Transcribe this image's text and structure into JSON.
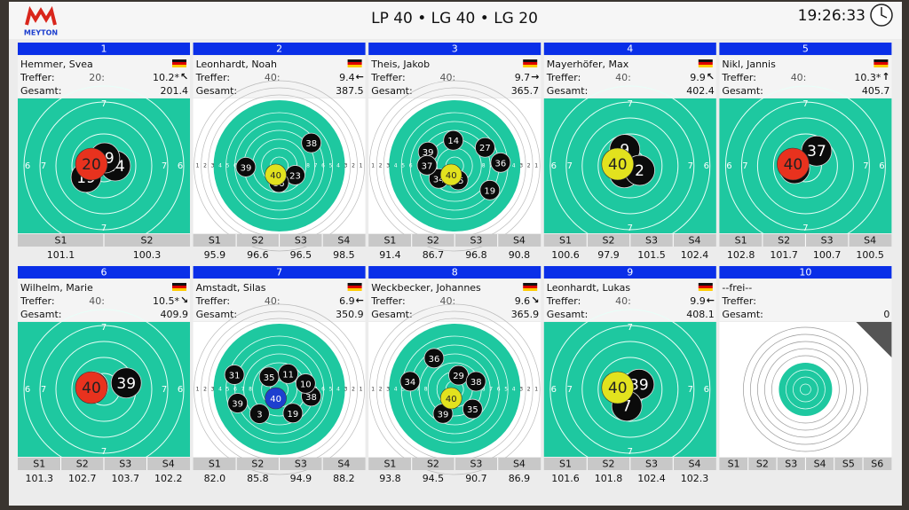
{
  "header": {
    "logo": "MEYTON",
    "title": "LP 40 • LG 40 • LG 20",
    "time": "19:26:33"
  },
  "labels": {
    "hits": "Treffer:",
    "total": "Gesamt:"
  },
  "ring_labels": [
    "1",
    "2",
    "3",
    "4",
    "5",
    "6",
    "7",
    "8"
  ],
  "lanes": [
    {
      "number": "1",
      "name": "Hemmer, Svea",
      "hits": "20:",
      "last_value": "10.2*",
      "direction": "↖",
      "total": "201.4",
      "series": [
        {
          "label": "S1",
          "value": "101.1"
        },
        {
          "label": "S2",
          "value": "100.3"
        }
      ],
      "shots": [
        "14",
        "19",
        "19"
      ],
      "last_shot": {
        "label": "20",
        "color": "#e8321e"
      }
    },
    {
      "number": "2",
      "name": "Leonhardt, Noah",
      "hits": "40:",
      "last_value": "9.4",
      "direction": "←",
      "total": "387.5",
      "series": [
        {
          "label": "S1",
          "value": "95.9"
        },
        {
          "label": "S2",
          "value": "96.6"
        },
        {
          "label": "S3",
          "value": "96.5"
        },
        {
          "label": "S4",
          "value": "98.5"
        }
      ],
      "shots": [
        "23",
        "39",
        "38",
        "36"
      ],
      "last_shot": {
        "label": "40",
        "color": "#e2e21e"
      }
    },
    {
      "number": "3",
      "name": "Theis, Jakob",
      "hits": "40:",
      "last_value": "9.7",
      "direction": "→",
      "total": "365.7",
      "series": [
        {
          "label": "S1",
          "value": "91.4"
        },
        {
          "label": "S2",
          "value": "86.7"
        },
        {
          "label": "S3",
          "value": "96.8"
        },
        {
          "label": "S4",
          "value": "90.8"
        }
      ],
      "shots": [
        "35",
        "39",
        "36",
        "34",
        "14",
        "19",
        "37",
        "27"
      ],
      "last_shot": {
        "label": "40",
        "color": "#e2e21e"
      }
    },
    {
      "number": "4",
      "name": "Mayerhöfer, Max",
      "hits": "40:",
      "last_value": "9.9",
      "direction": "↖",
      "total": "402.4",
      "series": [
        {
          "label": "S1",
          "value": "100.6"
        },
        {
          "label": "S2",
          "value": "97.9"
        },
        {
          "label": "S3",
          "value": "101.5"
        },
        {
          "label": "S4",
          "value": "102.4"
        }
      ],
      "shots": [
        "28",
        "9",
        "2"
      ],
      "last_shot": {
        "label": "40",
        "color": "#e2e21e"
      }
    },
    {
      "number": "5",
      "name": "Nikl, Jannis",
      "hits": "40:",
      "last_value": "10.3*",
      "direction": "↑",
      "total": "405.7",
      "series": [
        {
          "label": "S1",
          "value": "102.8"
        },
        {
          "label": "S2",
          "value": "101.7"
        },
        {
          "label": "S3",
          "value": "100.7"
        },
        {
          "label": "S4",
          "value": "100.5"
        }
      ],
      "shots": [
        "39",
        "37"
      ],
      "last_shot": {
        "label": "40",
        "color": "#e8321e"
      }
    },
    {
      "number": "6",
      "name": "Wilhelm, Marie",
      "hits": "40:",
      "last_value": "10.5*",
      "direction": "↘",
      "total": "409.9",
      "series": [
        {
          "label": "S1",
          "value": "101.3"
        },
        {
          "label": "S2",
          "value": "102.7"
        },
        {
          "label": "S3",
          "value": "103.7"
        },
        {
          "label": "S4",
          "value": "102.2"
        }
      ],
      "shots": [
        "20",
        "39"
      ],
      "last_shot": {
        "label": "40",
        "color": "#e8321e"
      }
    },
    {
      "number": "7",
      "name": "Amstadt, Silas",
      "hits": "40:",
      "last_value": "6.9",
      "direction": "←",
      "total": "350.9",
      "series": [
        {
          "label": "S1",
          "value": "82.0"
        },
        {
          "label": "S2",
          "value": "85.8"
        },
        {
          "label": "S3",
          "value": "94.9"
        },
        {
          "label": "S4",
          "value": "88.2"
        }
      ],
      "shots": [
        "35",
        "38",
        "39",
        "11",
        "19",
        "31",
        "10",
        "3"
      ],
      "last_shot": {
        "label": "40",
        "color": "#1d3fcf"
      }
    },
    {
      "number": "8",
      "name": "Weckbecker, Johannes",
      "hits": "40:",
      "last_value": "9.6",
      "direction": "↘",
      "total": "365.9",
      "series": [
        {
          "label": "S1",
          "value": "93.8"
        },
        {
          "label": "S2",
          "value": "94.5"
        },
        {
          "label": "S3",
          "value": "90.7"
        },
        {
          "label": "S4",
          "value": "86.9"
        }
      ],
      "shots": [
        "29",
        "35",
        "34",
        "38",
        "39",
        "36"
      ],
      "last_shot": {
        "label": "40",
        "color": "#e2e21e"
      }
    },
    {
      "number": "9",
      "name": "Leonhardt, Lukas",
      "hits": "40:",
      "last_value": "9.9",
      "direction": "←",
      "total": "408.1",
      "series": [
        {
          "label": "S1",
          "value": "101.6"
        },
        {
          "label": "S2",
          "value": "101.8"
        },
        {
          "label": "S3",
          "value": "102.4"
        },
        {
          "label": "S4",
          "value": "102.3"
        }
      ],
      "shots": [
        "39",
        "7"
      ],
      "last_shot": {
        "label": "40",
        "color": "#e2e21e"
      }
    },
    {
      "number": "10",
      "name": "--frei--",
      "total": "0",
      "series": [
        {
          "label": "S1"
        },
        {
          "label": "S2"
        },
        {
          "label": "S3"
        },
        {
          "label": "S4"
        },
        {
          "label": "S5"
        },
        {
          "label": "S6"
        }
      ]
    }
  ]
}
